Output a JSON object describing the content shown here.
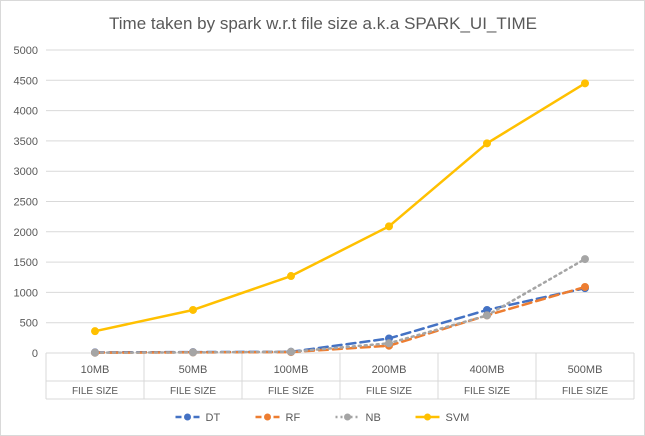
{
  "chart_data": {
    "type": "line",
    "title": "Time taken by spark w.r.t file size a.k.a SPARK_UI_TIME",
    "xlabel": "",
    "ylabel": "",
    "categories": [
      "10MB",
      "50MB",
      "100MB",
      "200MB",
      "400MB",
      "500MB"
    ],
    "category_group": [
      "FILE SIZE",
      "FILE SIZE",
      "FILE SIZE",
      "FILE SIZE",
      "FILE SIZE",
      "FILE SIZE"
    ],
    "ylim": [
      0,
      5000
    ],
    "yticks": [
      0,
      500,
      1000,
      1500,
      2000,
      2500,
      3000,
      3500,
      4000,
      4500,
      5000
    ],
    "grid": "horizontal",
    "legend_position": "bottom",
    "series": [
      {
        "name": "DT",
        "color": "#4472C4",
        "dash": "dash",
        "values": [
          10,
          15,
          20,
          240,
          710,
          1070
        ]
      },
      {
        "name": "RF",
        "color": "#ED7D31",
        "dash": "dash",
        "values": [
          5,
          10,
          15,
          120,
          620,
          1090
        ]
      },
      {
        "name": "NB",
        "color": "#A5A5A5",
        "dash": "dot",
        "values": [
          5,
          10,
          20,
          160,
          620,
          1550
        ]
      },
      {
        "name": "SVM",
        "color": "#FFC000",
        "dash": "solid",
        "values": [
          360,
          710,
          1270,
          2090,
          3460,
          4450
        ]
      }
    ]
  }
}
